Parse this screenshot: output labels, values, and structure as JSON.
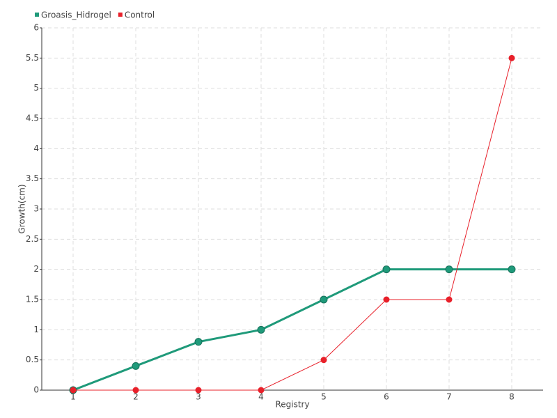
{
  "chart_data": {
    "type": "line",
    "categories": [
      "1",
      "2",
      "3",
      "4",
      "5",
      "6",
      "7",
      "8"
    ],
    "series": [
      {
        "name": "Groasis_Hidrogel",
        "color": "#1f9a7a",
        "values": [
          0,
          0.4,
          0.8,
          1,
          1.5,
          2,
          2,
          2
        ]
      },
      {
        "name": "Control",
        "color": "#e8202a",
        "values": [
          0,
          0,
          0,
          0,
          0.5,
          1.5,
          1.5,
          5.5
        ]
      }
    ],
    "xlabel": "Registry",
    "ylabel": "Growth(cm)",
    "ylim": [
      0,
      6
    ],
    "yticks": [
      0,
      0.5,
      1,
      1.5,
      2,
      2.5,
      3,
      3.5,
      4,
      4.5,
      5,
      5.5,
      6
    ],
    "grid": true,
    "legend": "top-left"
  }
}
